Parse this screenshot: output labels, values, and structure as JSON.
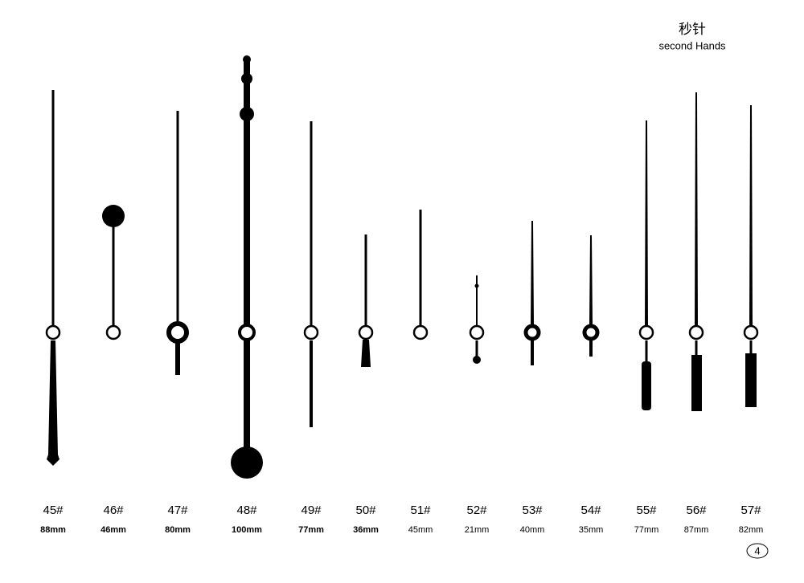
{
  "header": {
    "title": "秒针",
    "subtitle": "second Hands"
  },
  "items": [
    {
      "code": "45#",
      "length": "88mm"
    },
    {
      "code": "46#",
      "length": "46mm"
    },
    {
      "code": "47#",
      "length": "80mm"
    },
    {
      "code": "48#",
      "length": "100mm"
    },
    {
      "code": "49#",
      "length": "77mm"
    },
    {
      "code": "50#",
      "length": "36mm"
    },
    {
      "code": "51#",
      "length": "45mm"
    },
    {
      "code": "52#",
      "length": "21mm"
    },
    {
      "code": "53#",
      "length": "40mm"
    },
    {
      "code": "54#",
      "length": "35mm"
    },
    {
      "code": "55#",
      "length": "77mm"
    },
    {
      "code": "56#",
      "length": "87mm"
    },
    {
      "code": "57#",
      "length": "82mm"
    }
  ],
  "page_number": "4"
}
